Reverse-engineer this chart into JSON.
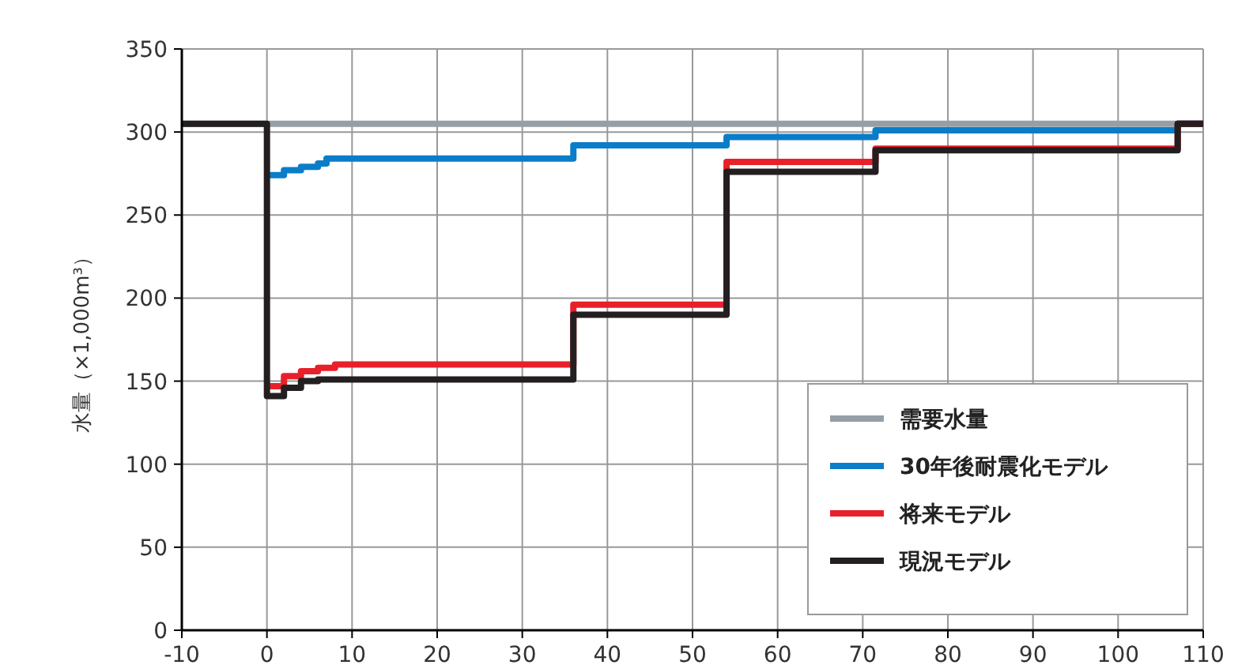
{
  "chart_data": {
    "type": "step",
    "ylabel": "水量（×1,000m³）",
    "xlim": [
      -10,
      110
    ],
    "ylim": [
      0,
      350
    ],
    "xticks": [
      -10,
      0,
      10,
      20,
      30,
      40,
      50,
      60,
      70,
      80,
      90,
      100,
      110
    ],
    "yticks": [
      0,
      50,
      100,
      150,
      200,
      250,
      300,
      350
    ],
    "grid": true,
    "legend": "bottom right",
    "line_style": "solid",
    "marker": "none",
    "series": [
      {
        "name": "需要水量",
        "color": "#969fa6",
        "x": [
          -10,
          110
        ],
        "values": [
          305,
          305
        ]
      },
      {
        "name": "30年後耐震化モデル",
        "color": "#0a7dc8",
        "x": [
          0,
          2,
          4,
          6,
          7,
          36,
          54,
          71.5,
          107,
          110
        ],
        "values": [
          274,
          277,
          279,
          281,
          284,
          292,
          297,
          301,
          305,
          305
        ]
      },
      {
        "name": "将来モデル",
        "color": "#e8202a",
        "x": [
          0,
          2,
          4,
          6,
          8,
          36,
          54,
          71.5,
          107,
          110
        ],
        "values": [
          147,
          153,
          156,
          158,
          160,
          196,
          282,
          290,
          305,
          305
        ]
      },
      {
        "name": "現況モデル",
        "color": "#231f20",
        "x": [
          -10,
          0,
          2,
          4,
          6,
          36,
          54,
          71.5,
          107,
          110
        ],
        "values": [
          305,
          141,
          146,
          150,
          151,
          190,
          276,
          289,
          305,
          305
        ]
      }
    ]
  }
}
